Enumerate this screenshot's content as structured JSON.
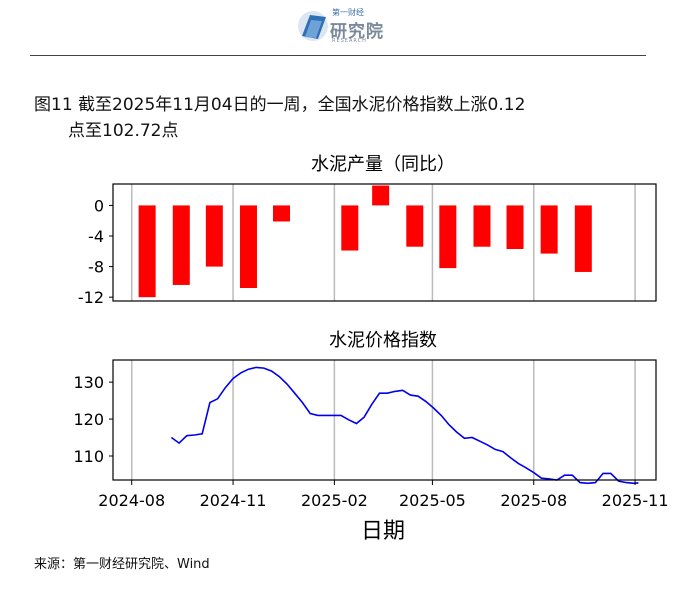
{
  "header": {
    "logo_icon": "stylized-globe-icon",
    "brand_small": "第一财经",
    "brand_name": "研究院",
    "brand_sub": "RESEARCH"
  },
  "figure": {
    "title_line1": "图11  截至2025年11月04日的一周，全国水泥价格指数上涨0.12",
    "title_line2": "点至102.72点",
    "source": "来源：第一财经研究院、Wind"
  },
  "colors": {
    "bars": "#ff0000",
    "line": "#0000ee",
    "grid": "#bbbbbb"
  },
  "chart_data": [
    {
      "type": "bar",
      "title": "水泥产量（同比）",
      "x": [
        "2024-08",
        "2024-09",
        "2024-10",
        "2024-11",
        "2024-12",
        "2025-02",
        "2025-03",
        "2025-04",
        "2025-05",
        "2025-06",
        "2025-07",
        "2025-08",
        "2025-09"
      ],
      "values": [
        -12.0,
        -10.4,
        -8.0,
        -10.8,
        -2.1,
        -5.9,
        2.6,
        -5.4,
        -8.2,
        -5.4,
        -5.7,
        -6.3,
        -8.7
      ],
      "ylim": [
        -12.5,
        2.8
      ],
      "yticks": [
        0,
        -4,
        -8,
        -12
      ],
      "grid": "vertical"
    },
    {
      "type": "line",
      "title": "水泥价格指数",
      "xlabel": "日期",
      "xticks": [
        "2024-08",
        "2024-11",
        "2025-02",
        "2025-05",
        "2025-08",
        "2025-11"
      ],
      "yticks": [
        110,
        120,
        130
      ],
      "ylim": [
        103.5,
        136
      ],
      "grid": "vertical",
      "x": [
        "2024-09-06",
        "2024-09-13",
        "2024-09-20",
        "2024-09-27",
        "2024-10-04",
        "2024-10-11",
        "2024-10-18",
        "2024-10-25",
        "2024-11-01",
        "2024-11-08",
        "2024-11-15",
        "2024-11-22",
        "2024-11-29",
        "2024-12-06",
        "2024-12-13",
        "2024-12-20",
        "2024-12-27",
        "2025-01-03",
        "2025-01-10",
        "2025-01-17",
        "2025-01-24",
        "2025-01-31",
        "2025-02-07",
        "2025-02-14",
        "2025-02-21",
        "2025-02-28",
        "2025-03-07",
        "2025-03-14",
        "2025-03-21",
        "2025-03-28",
        "2025-04-04",
        "2025-04-11",
        "2025-04-18",
        "2025-04-25",
        "2025-05-02",
        "2025-05-09",
        "2025-05-16",
        "2025-05-23",
        "2025-05-30",
        "2025-06-06",
        "2025-06-13",
        "2025-06-20",
        "2025-06-27",
        "2025-07-04",
        "2025-07-11",
        "2025-07-18",
        "2025-07-25",
        "2025-08-01",
        "2025-08-08",
        "2025-08-15",
        "2025-08-22",
        "2025-08-29",
        "2025-09-05",
        "2025-09-12",
        "2025-09-19",
        "2025-09-26",
        "2025-10-03",
        "2025-10-10",
        "2025-10-17",
        "2025-10-24",
        "2025-10-31",
        "2025-11-04"
      ],
      "y": [
        115.0,
        113.5,
        115.5,
        115.7,
        116.0,
        124.5,
        125.5,
        128.5,
        131.0,
        132.5,
        133.5,
        134.0,
        133.8,
        133.0,
        131.5,
        129.5,
        127.0,
        124.5,
        121.5,
        121.0,
        121.0,
        121.0,
        121.0,
        119.8,
        118.8,
        120.5,
        124.0,
        127.0,
        127.0,
        127.5,
        127.8,
        126.5,
        126.2,
        124.8,
        123.0,
        121.0,
        118.5,
        116.5,
        114.8,
        115.0,
        114.0,
        113.0,
        111.8,
        111.2,
        109.5,
        108.0,
        106.8,
        105.5,
        104.0,
        103.8,
        103.5,
        104.8,
        104.8,
        102.8,
        102.6,
        102.8,
        105.3,
        105.3,
        103.2,
        102.8,
        102.6,
        102.72
      ]
    }
  ]
}
